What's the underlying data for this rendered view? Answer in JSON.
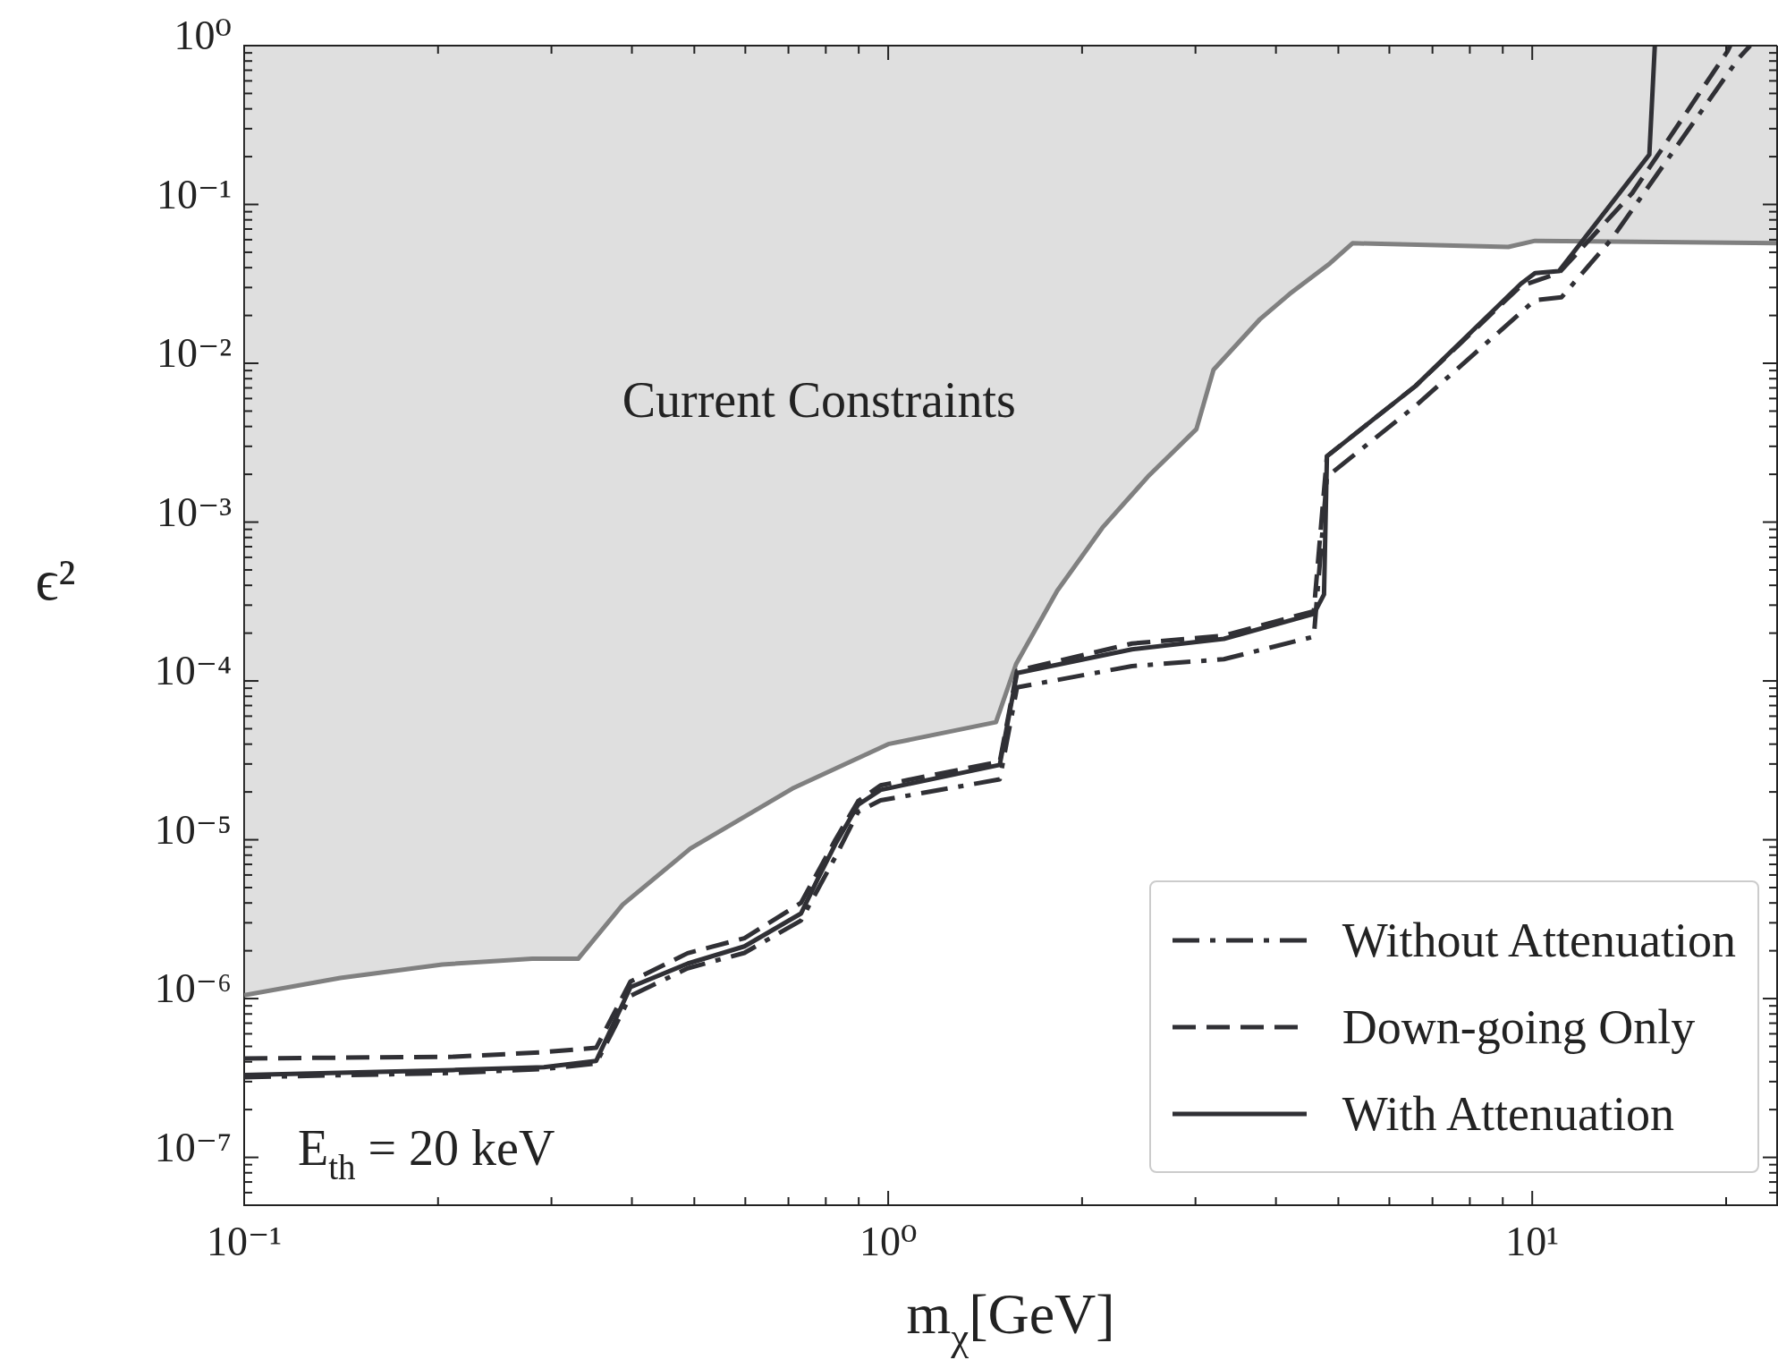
{
  "chart_data": {
    "type": "line",
    "xlabel": "m$_{χ}$[GeV]",
    "ylabel": "ϵ²",
    "log": "xy",
    "marker": "none",
    "legend": "bottom right",
    "xlim": [
      0.1,
      24
    ],
    "ylim": [
      5e-08,
      1
    ],
    "xticks": [
      {
        "value": 0.1,
        "label": "10⁻¹"
      },
      {
        "value": 0.2,
        "label": null
      },
      {
        "value": 0.3,
        "label": null
      },
      {
        "value": 0.4,
        "label": null
      },
      {
        "value": 0.5,
        "label": null
      },
      {
        "value": 0.6,
        "label": null
      },
      {
        "value": 0.7,
        "label": null
      },
      {
        "value": 0.8,
        "label": null
      },
      {
        "value": 0.9,
        "label": null
      },
      {
        "value": 1,
        "label": "10⁰"
      },
      {
        "value": 2,
        "label": null
      },
      {
        "value": 3,
        "label": null
      },
      {
        "value": 4,
        "label": null
      },
      {
        "value": 5,
        "label": null
      },
      {
        "value": 6,
        "label": null
      },
      {
        "value": 7,
        "label": null
      },
      {
        "value": 8,
        "label": null
      },
      {
        "value": 9,
        "label": null
      },
      {
        "value": 10,
        "label": "10¹"
      },
      {
        "value": 20,
        "label": null
      }
    ],
    "yticks": [
      {
        "value": 6e-08,
        "label": null
      },
      {
        "value": 7e-08,
        "label": null
      },
      {
        "value": 8e-08,
        "label": null
      },
      {
        "value": 9e-08,
        "label": null
      },
      {
        "value": 1e-07,
        "label": "10⁻⁷"
      },
      {
        "value": 2e-07,
        "label": null
      },
      {
        "value": 3e-07,
        "label": null
      },
      {
        "value": 4e-07,
        "label": null
      },
      {
        "value": 5e-07,
        "label": null
      },
      {
        "value": 6e-07,
        "label": null
      },
      {
        "value": 7e-07,
        "label": null
      },
      {
        "value": 8e-07,
        "label": null
      },
      {
        "value": 9e-07,
        "label": null
      },
      {
        "value": 1e-06,
        "label": "10⁻⁶"
      },
      {
        "value": 2e-06,
        "label": null
      },
      {
        "value": 3e-06,
        "label": null
      },
      {
        "value": 4e-06,
        "label": null
      },
      {
        "value": 5e-06,
        "label": null
      },
      {
        "value": 6e-06,
        "label": null
      },
      {
        "value": 7e-06,
        "label": null
      },
      {
        "value": 8e-06,
        "label": null
      },
      {
        "value": 9e-06,
        "label": null
      },
      {
        "value": 1e-05,
        "label": "10⁻⁵"
      },
      {
        "value": 2e-05,
        "label": null
      },
      {
        "value": 3e-05,
        "label": null
      },
      {
        "value": 4e-05,
        "label": null
      },
      {
        "value": 5e-05,
        "label": null
      },
      {
        "value": 6e-05,
        "label": null
      },
      {
        "value": 7e-05,
        "label": null
      },
      {
        "value": 8e-05,
        "label": null
      },
      {
        "value": 9e-05,
        "label": null
      },
      {
        "value": 0.0001,
        "label": "10⁻⁴"
      },
      {
        "value": 0.0002,
        "label": null
      },
      {
        "value": 0.0003,
        "label": null
      },
      {
        "value": 0.0004,
        "label": null
      },
      {
        "value": 0.0005,
        "label": null
      },
      {
        "value": 0.0006,
        "label": null
      },
      {
        "value": 0.0007,
        "label": null
      },
      {
        "value": 0.0008,
        "label": null
      },
      {
        "value": 0.0009,
        "label": null
      },
      {
        "value": 0.001,
        "label": "10⁻³"
      },
      {
        "value": 0.002,
        "label": null
      },
      {
        "value": 0.003,
        "label": null
      },
      {
        "value": 0.004,
        "label": null
      },
      {
        "value": 0.005,
        "label": null
      },
      {
        "value": 0.006,
        "label": null
      },
      {
        "value": 0.007,
        "label": null
      },
      {
        "value": 0.008,
        "label": null
      },
      {
        "value": 0.009,
        "label": null
      },
      {
        "value": 0.01,
        "label": "10⁻²"
      },
      {
        "value": 0.02,
        "label": null
      },
      {
        "value": 0.03,
        "label": null
      },
      {
        "value": 0.04,
        "label": null
      },
      {
        "value": 0.05,
        "label": null
      },
      {
        "value": 0.06,
        "label": null
      },
      {
        "value": 0.07,
        "label": null
      },
      {
        "value": 0.08,
        "label": null
      },
      {
        "value": 0.09,
        "label": null
      },
      {
        "value": 0.1,
        "label": "10⁻¹"
      },
      {
        "value": 0.2,
        "label": null
      },
      {
        "value": 0.3,
        "label": null
      },
      {
        "value": 0.4,
        "label": null
      },
      {
        "value": 0.5,
        "label": null
      },
      {
        "value": 0.6,
        "label": null
      },
      {
        "value": 0.7,
        "label": null
      },
      {
        "value": 0.8,
        "label": null
      },
      {
        "value": 0.9,
        "label": null
      },
      {
        "value": 1,
        "label": "10⁰"
      }
    ],
    "annotations": [
      "Current Constraints",
      "E$_{th}$ = 20 keV"
    ],
    "series": [
      {
        "name": "Without Attenuation",
        "color": "#303035",
        "line_style": "dashdot",
        "x": [
          0.1,
          0.211,
          0.292,
          0.352,
          0.398,
          0.488,
          0.598,
          0.732,
          0.828,
          0.898,
          0.973,
          1.49,
          1.585,
          2.39,
          3.32,
          4.58,
          4.8,
          6.59,
          10.1,
          11.1,
          13.3,
          20.9,
          21.8
        ],
        "values": [
          3.2e-07,
          3.4e-07,
          3.6e-07,
          3.9e-07,
          1.04e-06,
          1.55e-06,
          1.94e-06,
          3.1e-06,
          7.8e-06,
          1.5e-05,
          1.77e-05,
          2.4e-05,
          9.1e-05,
          0.000124,
          0.000137,
          0.00019,
          0.00193,
          0.0054,
          0.025,
          0.026,
          0.061,
          0.83,
          1
        ]
      },
      {
        "name": "Down-going Only",
        "color": "#303035",
        "line_style": "dashed",
        "x": [
          0.1,
          0.211,
          0.292,
          0.352,
          0.398,
          0.488,
          0.598,
          0.732,
          0.828,
          0.898,
          0.973,
          1.49,
          1.585,
          2.39,
          3.32,
          4.58,
          4.8,
          6.59,
          9.6,
          11.0,
          14.3,
          20.1,
          20.3
        ],
        "values": [
          4.2e-07,
          4.3e-07,
          4.6e-07,
          4.9e-07,
          1.28e-06,
          1.93e-06,
          2.4e-06,
          4e-06,
          1e-05,
          1.75e-05,
          2.2e-05,
          3.1e-05,
          0.000116,
          0.000172,
          0.000193,
          0.000275,
          0.0026,
          0.0072,
          0.0307,
          0.037,
          0.118,
          0.92,
          1
        ]
      },
      {
        "name": "With Attenuation",
        "color": "#303035",
        "line_style": "solid",
        "x": [
          0.1,
          0.211,
          0.292,
          0.352,
          0.398,
          0.488,
          0.598,
          0.732,
          0.778,
          0.828,
          0.898,
          0.973,
          1.49,
          1.585,
          2.39,
          3.32,
          4.58,
          4.75,
          4.8,
          6.59,
          9.6,
          10.1,
          11.0,
          15.2,
          15.5
        ],
        "values": [
          3.3e-07,
          3.55e-07,
          3.7e-07,
          4.05e-07,
          1.18e-06,
          1.66e-06,
          2.13e-06,
          3.43e-06,
          5.7e-06,
          9.4e-06,
          1.66e-05,
          2.06e-05,
          2.96e-05,
          0.000112,
          0.000158,
          0.000184,
          0.000264,
          0.00035,
          0.0026,
          0.0072,
          0.0316,
          0.037,
          0.038,
          0.206,
          1
        ]
      },
      {
        "type": "line",
        "color": "#808080",
        "line_style": "solid",
        "x": [
          0.1,
          0.141,
          0.203,
          0.28,
          0.33,
          0.387,
          0.493,
          0.71,
          1.0,
          1.47,
          1.58,
          1.83,
          2.15,
          2.53,
          3.01,
          3.2,
          3.78,
          4.2,
          4.85,
          5.26,
          9.18,
          10.1,
          24
        ],
        "values": [
          1.05e-06,
          1.35e-06,
          1.64e-06,
          1.78e-06,
          1.78e-06,
          3.9e-06,
          8.8e-06,
          2.1e-05,
          4e-05,
          5.5e-05,
          0.000128,
          0.00037,
          0.00092,
          0.00193,
          0.00385,
          0.0091,
          0.019,
          0.0273,
          0.0425,
          0.057,
          0.054,
          0.059,
          0.057
        ],
        "lower": [
          1.05e-06,
          1.35e-06,
          1.64e-06,
          1.78e-06,
          1.78e-06,
          3.9e-06,
          8.8e-06,
          2.1e-05,
          4e-05,
          5.5e-05,
          0.000128,
          0.00037,
          0.00092,
          0.00193,
          0.00385,
          0.0091,
          0.019,
          0.0273,
          0.0425,
          0.057,
          0.054,
          0.059,
          0.057
        ],
        "upper": [
          1,
          1,
          1,
          1,
          1,
          1,
          1,
          1,
          1,
          1,
          1,
          1,
          1,
          1,
          1,
          1,
          1,
          1,
          1,
          1,
          1,
          1,
          1
        ]
      }
    ]
  }
}
